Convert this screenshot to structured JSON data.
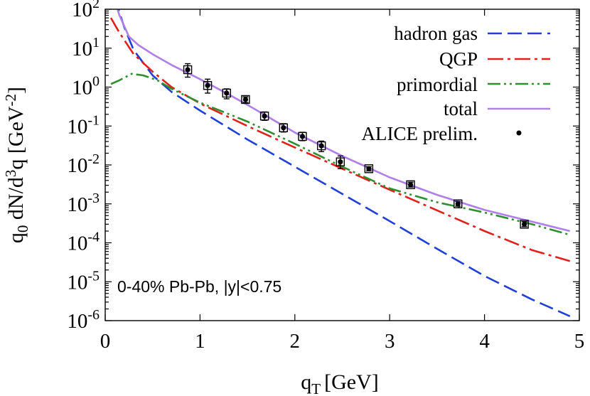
{
  "chart_data": {
    "type": "line",
    "xlabel_main": "q",
    "xlabel_sub": "T",
    "xlabel_unit": "[GeV]",
    "ylabel_parts": [
      "q",
      "0",
      " dN/d",
      "3",
      "q [GeV",
      "-2",
      "]"
    ],
    "xlim": [
      0,
      5
    ],
    "ylim": [
      1e-06,
      100
    ],
    "yscale": "log",
    "x_ticks": [
      0,
      1,
      2,
      3,
      4,
      5
    ],
    "x_tick_labels": [
      "0",
      "1",
      "2",
      "3",
      "4",
      "5"
    ],
    "y_tick_exponents": [
      2,
      1,
      0,
      -1,
      -2,
      -3,
      -4,
      -5,
      -6
    ],
    "y_tick_base": "10",
    "annotation": "0-40% Pb-Pb, |y|<0.75",
    "legend_position": "top-right",
    "series": [
      {
        "name": "hadron gas",
        "color": "#1f3fd8",
        "style": "dashed",
        "x": [
          0.1,
          0.2,
          0.3,
          0.5,
          0.7,
          1.0,
          1.5,
          2.0,
          2.5,
          3.0,
          3.5,
          4.0,
          4.5,
          4.9
        ],
        "y": [
          200,
          35,
          9,
          2.0,
          0.75,
          0.25,
          0.045,
          0.009,
          0.0018,
          0.00036,
          7e-05,
          1.4e-05,
          3.5e-06,
          1.3e-06
        ]
      },
      {
        "name": "QGP",
        "color": "#e0201b",
        "style": "dashdot",
        "x": [
          0.06,
          0.15,
          0.3,
          0.5,
          0.7,
          1.0,
          1.5,
          2.0,
          2.5,
          3.0,
          3.5,
          4.0,
          4.5,
          4.9
        ],
        "y": [
          60,
          25,
          7,
          2.5,
          1.0,
          0.38,
          0.1,
          0.028,
          0.008,
          0.0023,
          0.00068,
          0.0002,
          6.5e-05,
          3.4e-05
        ]
      },
      {
        "name": "primordial",
        "color": "#2f8f2f",
        "style": "dashdotdot",
        "x": [
          0.06,
          0.15,
          0.28,
          0.4,
          0.55,
          0.7,
          1.0,
          1.5,
          2.0,
          2.5,
          3.0,
          3.5,
          4.0,
          4.5,
          4.9
        ],
        "y": [
          1.2,
          1.5,
          2.2,
          2.0,
          1.5,
          0.9,
          0.4,
          0.13,
          0.035,
          0.009,
          0.0025,
          0.0011,
          0.0006,
          0.0003,
          0.00016
        ]
      },
      {
        "name": "total",
        "color": "#b07ee8",
        "style": "solid",
        "x": [
          0.09,
          0.15,
          0.25,
          0.35,
          0.5,
          0.7,
          1.0,
          1.3,
          1.5,
          2.0,
          2.5,
          3.0,
          3.5,
          4.0,
          4.5,
          4.9
        ],
        "y": [
          200,
          70,
          20,
          12,
          7,
          3.7,
          1.6,
          0.65,
          0.35,
          0.068,
          0.017,
          0.0048,
          0.0017,
          0.0007,
          0.00035,
          0.0002
        ]
      }
    ],
    "data_points": {
      "name": "ALICE prelim.",
      "color": "#000000",
      "x": [
        0.87,
        1.08,
        1.28,
        1.48,
        1.68,
        1.88,
        2.08,
        2.28,
        2.48,
        2.78,
        3.22,
        3.72,
        4.42
      ],
      "y": [
        2.8,
        1.1,
        0.7,
        0.48,
        0.18,
        0.09,
        0.054,
        0.031,
        0.012,
        0.008,
        0.0031,
        0.001,
        0.0003
      ],
      "err_lo": [
        1.0,
        0.4,
        0.2,
        0.08,
        0.04,
        0.02,
        0.012,
        0.009,
        0.004,
        0.001,
        0.0004,
        0.00013,
        4e-05
      ],
      "err_hi": [
        1.2,
        0.5,
        0.2,
        0.08,
        0.05,
        0.025,
        0.015,
        0.01,
        0.005,
        0.001,
        0.0005,
        0.00015,
        5e-05
      ]
    }
  }
}
